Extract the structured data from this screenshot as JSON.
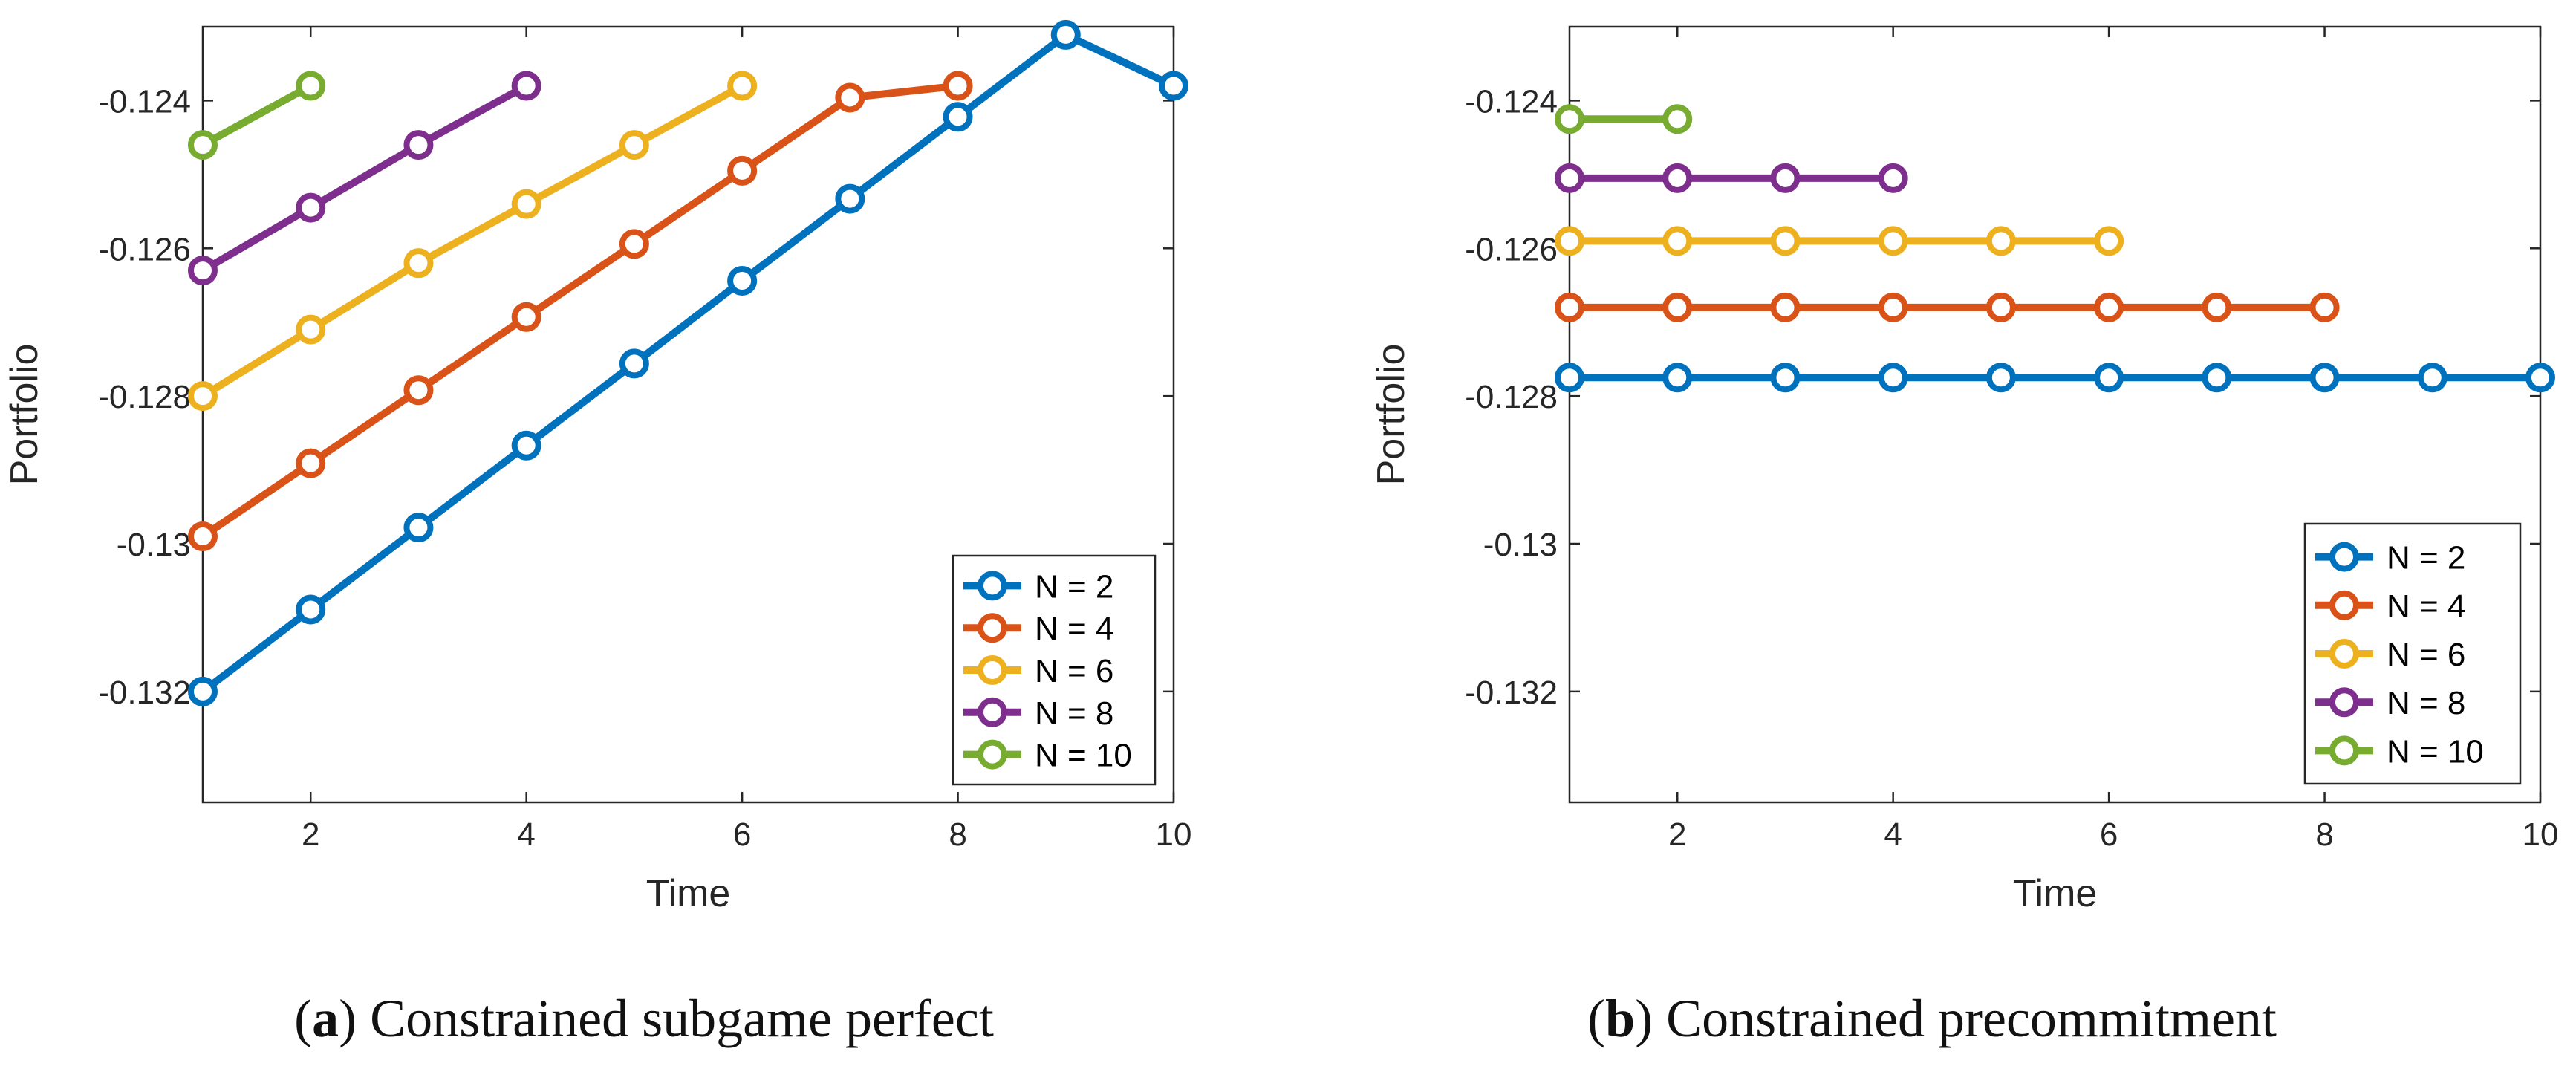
{
  "chart_data": [
    {
      "type": "line",
      "title": "",
      "xlabel": "Time",
      "ylabel": "Portfolio",
      "xlim": [
        1,
        10
      ],
      "ylim": [
        -0.1335,
        -0.123
      ],
      "xticks": [
        2,
        4,
        6,
        8,
        10
      ],
      "xtick_labels": [
        "2",
        "4",
        "6",
        "8",
        "10"
      ],
      "yticks": [
        -0.132,
        -0.13,
        -0.128,
        -0.126,
        -0.124
      ],
      "ytick_labels": [
        "-0.132",
        "-0.13",
        "-0.128",
        "-0.126",
        "-0.124"
      ],
      "legend_position": "bottom-right",
      "caption_letter": "a",
      "caption_text": "Constrained subgame perfect",
      "series": [
        {
          "name": "N = 2",
          "color": "#0072BD",
          "x": [
            1,
            2,
            3,
            4,
            5,
            6,
            7,
            8,
            9,
            10
          ],
          "values": [
            -0.132,
            -0.13089,
            -0.12978,
            -0.12867,
            -0.12756,
            -0.12644,
            -0.12533,
            -0.12422,
            -0.12311,
            -0.1238
          ]
        },
        {
          "name": "N = 4",
          "color": "#D95319",
          "x": [
            1,
            2,
            3,
            4,
            5,
            6,
            7,
            8
          ],
          "values": [
            -0.1299,
            -0.12891,
            -0.12792,
            -0.12693,
            -0.12594,
            -0.12495,
            -0.12396,
            -0.1238
          ]
        },
        {
          "name": "N = 6",
          "color": "#EDB120",
          "x": [
            1,
            2,
            3,
            4,
            5,
            6
          ],
          "values": [
            -0.128,
            -0.1271,
            -0.1262,
            -0.1254,
            -0.1246,
            -0.1238
          ]
        },
        {
          "name": "N = 8",
          "color": "#7E2F8E",
          "x": [
            1,
            2,
            3,
            4
          ],
          "values": [
            -0.1263,
            -0.12545,
            -0.1246,
            -0.1238
          ]
        },
        {
          "name": "N = 10",
          "color": "#77AC30",
          "x": [
            1,
            2
          ],
          "values": [
            -0.1246,
            -0.1238
          ]
        }
      ]
    },
    {
      "type": "line",
      "title": "",
      "xlabel": "Time",
      "ylabel": "Portfolio",
      "xlim": [
        1,
        10
      ],
      "ylim": [
        -0.1335,
        -0.123
      ],
      "xticks": [
        2,
        4,
        6,
        8,
        10
      ],
      "xtick_labels": [
        "2",
        "4",
        "6",
        "8",
        "10"
      ],
      "yticks": [
        -0.132,
        -0.13,
        -0.128,
        -0.126,
        -0.124
      ],
      "ytick_labels": [
        "-0.132",
        "-0.13",
        "-0.128",
        "-0.126",
        "-0.124"
      ],
      "legend_position": "bottom-right",
      "caption_letter": "b",
      "caption_text": "Constrained precommitment",
      "series": [
        {
          "name": "N = 2",
          "color": "#0072BD",
          "x": [
            1,
            2,
            3,
            4,
            5,
            6,
            7,
            8,
            9,
            10
          ],
          "values": [
            -0.12775,
            -0.12775,
            -0.12775,
            -0.12775,
            -0.12775,
            -0.12775,
            -0.12775,
            -0.12775,
            -0.12775,
            -0.12775
          ]
        },
        {
          "name": "N = 4",
          "color": "#D95319",
          "x": [
            1,
            2,
            3,
            4,
            5,
            6,
            7,
            8
          ],
          "values": [
            -0.1268,
            -0.1268,
            -0.1268,
            -0.1268,
            -0.1268,
            -0.1268,
            -0.1268,
            -0.1268
          ]
        },
        {
          "name": "N = 6",
          "color": "#EDB120",
          "x": [
            1,
            2,
            3,
            4,
            5,
            6
          ],
          "values": [
            -0.1259,
            -0.1259,
            -0.1259,
            -0.1259,
            -0.1259,
            -0.1259
          ]
        },
        {
          "name": "N = 8",
          "color": "#7E2F8E",
          "x": [
            1,
            2,
            3,
            4
          ],
          "values": [
            -0.12505,
            -0.12505,
            -0.12505,
            -0.12505
          ]
        },
        {
          "name": "N = 10",
          "color": "#77AC30",
          "x": [
            1,
            2
          ],
          "values": [
            -0.12425,
            -0.12425
          ]
        }
      ]
    }
  ]
}
